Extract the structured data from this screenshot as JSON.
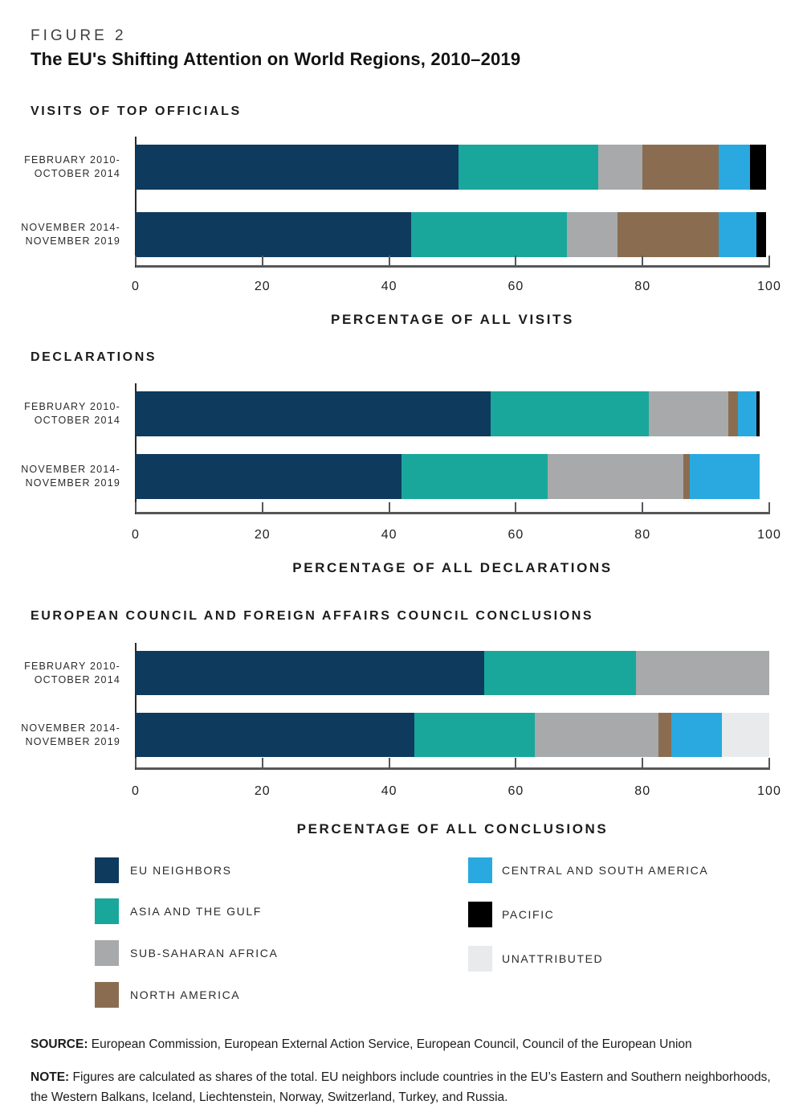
{
  "header": {
    "figure_label": "FIGURE 2",
    "title": "The EU's Shifting Attention on World Regions, 2010–2019"
  },
  "legend": {
    "items": [
      {
        "label": "EU NEIGHBORS",
        "color": "#0E3A5D"
      },
      {
        "label": "ASIA AND THE GULF",
        "color": "#19A79B"
      },
      {
        "label": "SUB-SAHARAN AFRICA",
        "color": "#A7A9AB"
      },
      {
        "label": "NORTH AMERICA",
        "color": "#8A6D51"
      },
      {
        "label": "CENTRAL AND SOUTH AMERICA",
        "color": "#29A9E0"
      },
      {
        "label": "PACIFIC",
        "color": "#000000"
      },
      {
        "label": "UNATTRIBUTED",
        "color": "#E8EAEB"
      }
    ]
  },
  "chart_data": [
    {
      "type": "bar",
      "orientation": "horizontal-stacked",
      "section_title": "VISITS OF TOP OFFICIALS",
      "xlabel": "PERCENTAGE OF ALL VISITS",
      "xlim": [
        0,
        100
      ],
      "x_ticks": [
        "0",
        "20",
        "40",
        "60",
        "80",
        "100"
      ],
      "categories": [
        "FEBRUARY 2010–OCTOBER 2014",
        "NOVEMBER 2014–NOVEMBER 2019"
      ],
      "category_label_lines": [
        [
          "FEBRUARY 2010-",
          "OCTOBER 2014"
        ],
        [
          "NOVEMBER 2014-",
          "NOVEMBER 2019"
        ]
      ],
      "series": [
        {
          "name": "EU NEIGHBORS",
          "values": [
            51,
            43.5
          ]
        },
        {
          "name": "ASIA AND THE GULF",
          "values": [
            22,
            24.5
          ]
        },
        {
          "name": "SUB-SAHARAN AFRICA",
          "values": [
            7,
            8
          ]
        },
        {
          "name": "NORTH AMERICA",
          "values": [
            12,
            16
          ]
        },
        {
          "name": "CENTRAL AND SOUTH AMERICA",
          "values": [
            5,
            6
          ]
        },
        {
          "name": "PACIFIC",
          "values": [
            2.5,
            1.5
          ]
        },
        {
          "name": "UNATTRIBUTED",
          "values": [
            0,
            0
          ]
        }
      ]
    },
    {
      "type": "bar",
      "orientation": "horizontal-stacked",
      "section_title": "DECLARATIONS",
      "xlabel": "PERCENTAGE OF ALL DECLARATIONS",
      "xlim": [
        0,
        100
      ],
      "x_ticks": [
        "0",
        "20",
        "40",
        "60",
        "80",
        "100"
      ],
      "categories": [
        "FEBRUARY 2010–OCTOBER 2014",
        "NOVEMBER 2014–NOVEMBER 2019"
      ],
      "category_label_lines": [
        [
          "FEBRUARY 2010-",
          "OCTOBER 2014"
        ],
        [
          "NOVEMBER 2014-",
          "NOVEMBER 2019"
        ]
      ],
      "series": [
        {
          "name": "EU NEIGHBORS",
          "values": [
            56,
            42
          ]
        },
        {
          "name": "ASIA AND THE GULF",
          "values": [
            25,
            23
          ]
        },
        {
          "name": "SUB-SAHARAN AFRICA",
          "values": [
            12.5,
            21.5
          ]
        },
        {
          "name": "NORTH AMERICA",
          "values": [
            1.5,
            1
          ]
        },
        {
          "name": "CENTRAL AND SOUTH AMERICA",
          "values": [
            3,
            11
          ]
        },
        {
          "name": "PACIFIC",
          "values": [
            0.5,
            0
          ]
        },
        {
          "name": "UNATTRIBUTED",
          "values": [
            0,
            0
          ]
        }
      ]
    },
    {
      "type": "bar",
      "orientation": "horizontal-stacked",
      "section_title": "EUROPEAN COUNCIL AND FOREIGN AFFAIRS COUNCIL CONCLUSIONS",
      "xlabel": "PERCENTAGE OF ALL CONCLUSIONS",
      "xlim": [
        0,
        100
      ],
      "x_ticks": [
        "0",
        "20",
        "40",
        "60",
        "80",
        "100"
      ],
      "categories": [
        "FEBRUARY 2010–OCTOBER 2014",
        "NOVEMBER 2014–NOVEMBER 2019"
      ],
      "category_label_lines": [
        [
          "FEBRUARY 2010-",
          "OCTOBER 2014"
        ],
        [
          "NOVEMBER 2014-",
          "NOVEMBER 2019"
        ]
      ],
      "series": [
        {
          "name": "EU NEIGHBORS",
          "values": [
            55,
            44
          ]
        },
        {
          "name": "ASIA AND THE GULF",
          "values": [
            24,
            19
          ]
        },
        {
          "name": "SUB-SAHARAN AFRICA",
          "values": [
            21,
            19.5
          ]
        },
        {
          "name": "NORTH AMERICA",
          "values": [
            0,
            2
          ]
        },
        {
          "name": "CENTRAL AND SOUTH AMERICA",
          "values": [
            0,
            8
          ]
        },
        {
          "name": "PACIFIC",
          "values": [
            0,
            0
          ]
        },
        {
          "name": "UNATTRIBUTED",
          "values": [
            0,
            7.5
          ]
        }
      ]
    }
  ],
  "footer": {
    "source_label": "SOURCE:",
    "source_text": "European Commission, European External Action Service, European Council, Council of the European Union",
    "note_label": "NOTE:",
    "note_text": "Figures are calculated as shares of the total. EU neighbors include countries in the EU’s Eastern and Southern neighborhoods, the Western Balkans, Iceland, Liechtenstein, Norway, Switzerland, Turkey, and Russia."
  }
}
